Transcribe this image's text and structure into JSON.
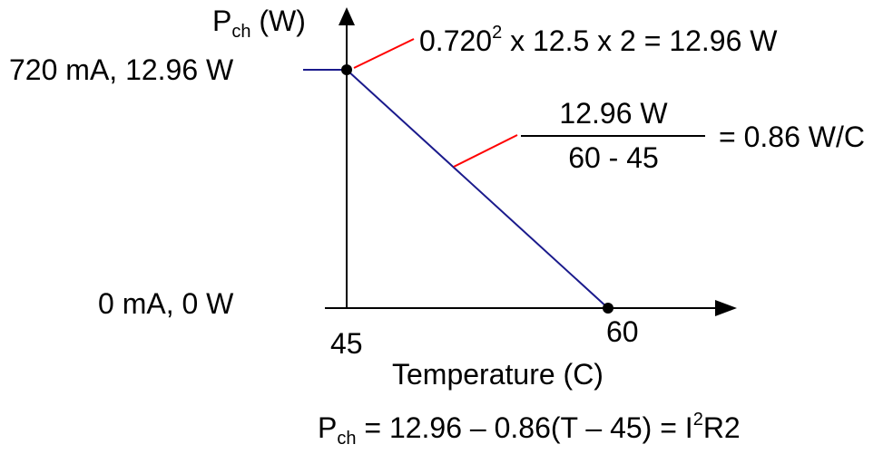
{
  "y_axis_label": {
    "main": "P",
    "sub": "ch",
    "unit": " (W)"
  },
  "x_axis_label": "Temperature (C)",
  "x_ticks": {
    "start": "45",
    "end": "60"
  },
  "point_top_label": "720 mA, 12.96 W",
  "point_bottom_label": "0 mA, 0 W",
  "power_calc": {
    "base": "0.720",
    "exp": "2",
    "rest": " x 12.5 x 2 = 12.96 W"
  },
  "slope_calc": {
    "numerator": "12.96 W",
    "denominator": "60 - 45",
    "result": "= 0.86 W/C"
  },
  "formula": {
    "p": "P",
    "sub": "ch",
    "mid": " = 12.96 – 0.86(T – 45) = I",
    "exp": "2",
    "tail": "R2"
  },
  "colors": {
    "line": "#1a1a8c",
    "callout": "#ff0000",
    "axis": "#000000"
  },
  "chart_data": {
    "type": "line",
    "x": [
      45,
      60
    ],
    "y": [
      12.96,
      0
    ]
  }
}
